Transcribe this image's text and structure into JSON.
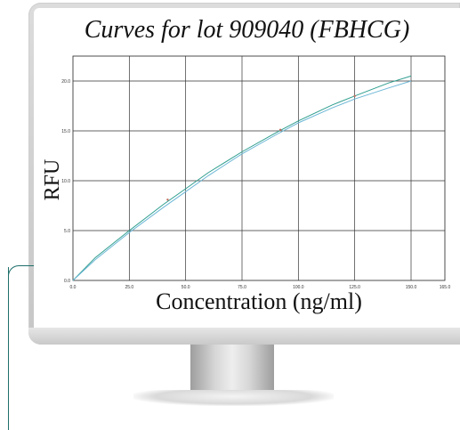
{
  "chart_data": {
    "type": "line",
    "title": "Curves for lot 909040 (FBHCG)",
    "xlabel": "Concentration (ng/ml)",
    "ylabel": "RFU",
    "xlim": [
      0,
      165
    ],
    "ylim": [
      0,
      22.5
    ],
    "x_ticks": [
      "0.0",
      "25.0",
      "50.0",
      "75.0",
      "100.0",
      "125.0",
      "150.0",
      "165.0"
    ],
    "x_tick_values": [
      0,
      25,
      50,
      75,
      100,
      125,
      150,
      165
    ],
    "y_ticks": [
      "0.0",
      "5.0",
      "10.0",
      "15.0",
      "20.0"
    ],
    "y_tick_values": [
      0,
      5,
      10,
      15,
      20
    ],
    "grid": true,
    "series": [
      {
        "color": "#2e9e8e",
        "x": [
          0,
          10,
          25,
          40,
          50,
          60,
          75,
          90,
          100,
          115,
          125,
          140,
          150
        ],
        "y": [
          0,
          2.3,
          5.0,
          7.6,
          9.2,
          10.8,
          12.9,
          14.8,
          16.0,
          17.6,
          18.5,
          19.8,
          20.5
        ]
      },
      {
        "color": "#6cb7d6",
        "x": [
          0,
          10,
          25,
          40,
          50,
          60,
          75,
          90,
          100,
          115,
          125,
          140,
          150
        ],
        "y": [
          0,
          2.1,
          4.8,
          7.3,
          8.9,
          10.5,
          12.7,
          14.6,
          15.8,
          17.3,
          18.2,
          19.3,
          20.0
        ]
      }
    ],
    "points": {
      "color": "#c06a5a",
      "x": [
        42,
        92,
        125
      ],
      "y": [
        8.1,
        15.1,
        18.5
      ]
    }
  }
}
